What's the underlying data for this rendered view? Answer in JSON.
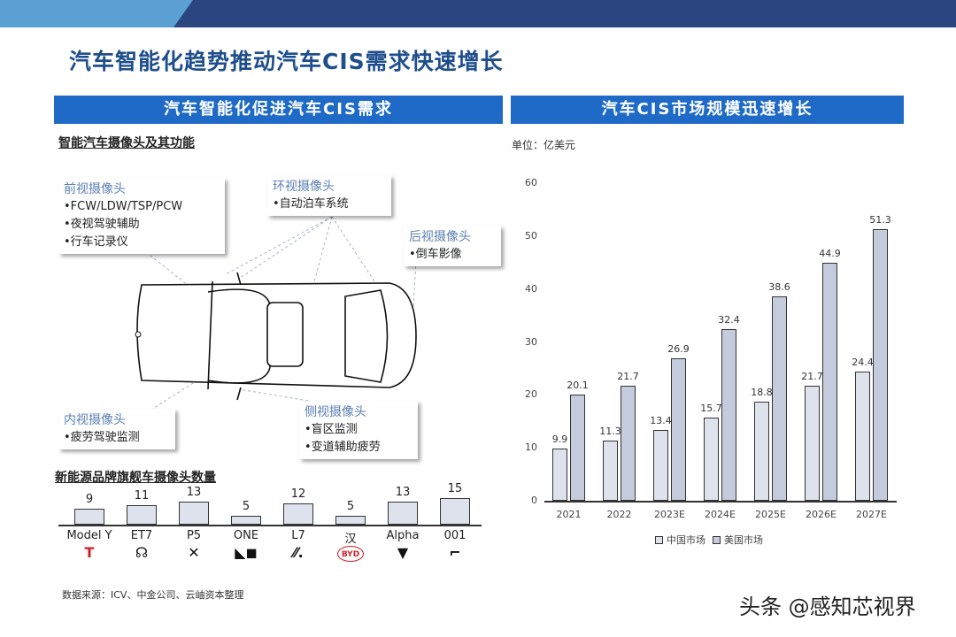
{
  "page": {
    "title": "汽车智能化趋势推动汽车CIS需求快速增长",
    "left_section_header": "汽车智能化促进汽车CIS需求",
    "right_section_header": "汽车CIS市场规模迅速增长"
  },
  "camera_diagram": {
    "title": "智能汽车摄像头及其功能",
    "callouts": [
      {
        "title": "前视摄像头",
        "items": [
          "•FCW/LDW/TSP/PCW",
          "•夜视驾驶辅助",
          "•行车记录仪"
        ]
      },
      {
        "title": "环视摄像头",
        "items": [
          "•自动泊车系统"
        ]
      },
      {
        "title": "后视摄像头",
        "items": [
          "•倒车影像"
        ]
      },
      {
        "title": "内视摄像头",
        "items": [
          "•疲劳驾驶监测"
        ]
      },
      {
        "title": "侧视摄像头",
        "items": [
          "•盲区监测",
          "•变道辅助疲劳"
        ]
      }
    ]
  },
  "brand_chart": {
    "title": "新能源品牌旗舰车摄像头数量",
    "items": [
      {
        "model": "Model Y",
        "value": "9",
        "logo": "tesla-logo",
        "logo_glyph": "T",
        "logo_color": "#d0202a"
      },
      {
        "model": "ET7",
        "value": "11",
        "logo": "nio-logo",
        "logo_glyph": "☊",
        "logo_color": "#111111"
      },
      {
        "model": "P5",
        "value": "13",
        "logo": "xpeng-logo",
        "logo_glyph": "✕",
        "logo_color": "#111111"
      },
      {
        "model": "ONE",
        "value": "5",
        "logo": "li-auto-logo",
        "logo_glyph": "◣◼",
        "logo_color": "#111111"
      },
      {
        "model": "L7",
        "value": "12",
        "logo": "im-logo",
        "logo_glyph": "⁄⁄.",
        "logo_color": "#111111"
      },
      {
        "model": "汉",
        "value": "5",
        "logo": "byd-logo",
        "logo_glyph": "BYD",
        "logo_color": "#d0202a"
      },
      {
        "model": "Alpha",
        "value": "13",
        "logo": "arcfox-logo",
        "logo_glyph": "▼",
        "logo_color": "#111111"
      },
      {
        "model": "001",
        "value": "15",
        "logo": "zeekr-logo",
        "logo_glyph": "⌐",
        "logo_color": "#111111"
      }
    ]
  },
  "chart_data": {
    "type": "bar",
    "title": "汽车CIS市场规模迅速增长",
    "unit_label": "单位：亿美元",
    "categories": [
      "2021",
      "2022",
      "2023E",
      "2024E",
      "2025E",
      "2026E",
      "2027E"
    ],
    "series": [
      {
        "name": "中国市场",
        "values": [
          9.9,
          11.3,
          13.4,
          15.7,
          18.8,
          21.7,
          24.4
        ],
        "color": "#dde2ec"
      },
      {
        "name": "美国市场",
        "values": [
          20.1,
          21.7,
          26.9,
          32.4,
          38.6,
          44.9,
          51.3
        ],
        "color": "#c3cbdd"
      }
    ],
    "yticks": [
      "0",
      "10",
      "20",
      "30",
      "40",
      "50",
      "60"
    ],
    "ylim": [
      0,
      60
    ],
    "xlabel": "",
    "ylabel": "",
    "grid": false,
    "legend_position": "bottom"
  },
  "footer": {
    "source": "数据来源：ICV、中金公司、云岫资本整理",
    "watermark": "头条 @感知芯视界"
  }
}
